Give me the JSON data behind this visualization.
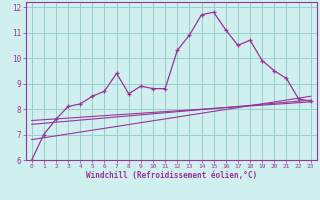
{
  "xlabel": "Windchill (Refroidissement éolien,°C)",
  "background_color": "#cff0ee",
  "grid_color": "#99cccc",
  "line_color": "#993399",
  "xlim": [
    -0.5,
    23.5
  ],
  "ylim": [
    6,
    12.2
  ],
  "yticks": [
    6,
    7,
    8,
    9,
    10,
    11,
    12
  ],
  "xticks": [
    0,
    1,
    2,
    3,
    4,
    5,
    6,
    7,
    8,
    9,
    10,
    11,
    12,
    13,
    14,
    15,
    16,
    17,
    18,
    19,
    20,
    21,
    22,
    23
  ],
  "series1_x": [
    0,
    1,
    2,
    3,
    4,
    5,
    6,
    7,
    8,
    9,
    10,
    11,
    12,
    13,
    14,
    15,
    16,
    17,
    18,
    19,
    20,
    21,
    22,
    23
  ],
  "series1_y": [
    6.0,
    7.0,
    7.6,
    8.1,
    8.2,
    8.5,
    8.7,
    9.4,
    8.6,
    8.9,
    8.8,
    8.8,
    10.3,
    10.9,
    11.7,
    11.8,
    11.1,
    10.5,
    10.7,
    9.9,
    9.5,
    9.2,
    8.4,
    8.3
  ],
  "series2_x": [
    0,
    23
  ],
  "series2_y": [
    6.8,
    8.5
  ],
  "series3_x": [
    0,
    23
  ],
  "series3_y": [
    7.4,
    8.35
  ],
  "series4_x": [
    0,
    23
  ],
  "series4_y": [
    7.55,
    8.28
  ]
}
